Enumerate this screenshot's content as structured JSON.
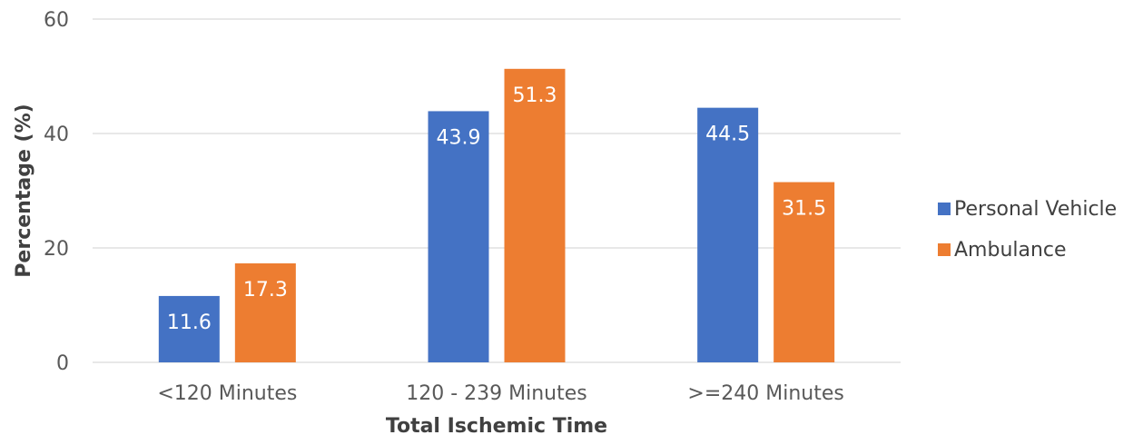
{
  "chart_data": {
    "type": "bar",
    "categories": [
      "<120 Minutes",
      "120 - 239 Minutes",
      ">=240 Minutes"
    ],
    "series": [
      {
        "name": "Personal Vehicle",
        "values": [
          11.6,
          43.9,
          44.5
        ],
        "color": "#4472C4"
      },
      {
        "name": "Ambulance",
        "values": [
          17.3,
          51.3,
          31.5
        ],
        "color": "#ED7D31"
      }
    ],
    "xlabel": "Total Ischemic Time",
    "ylabel": "Percentage (%)",
    "ylim": [
      0,
      60
    ],
    "yticks": [
      0,
      20,
      40,
      60
    ],
    "grid": true,
    "legend_position": "right",
    "data_labels": true,
    "gridline_color": "#D9D9D9"
  }
}
